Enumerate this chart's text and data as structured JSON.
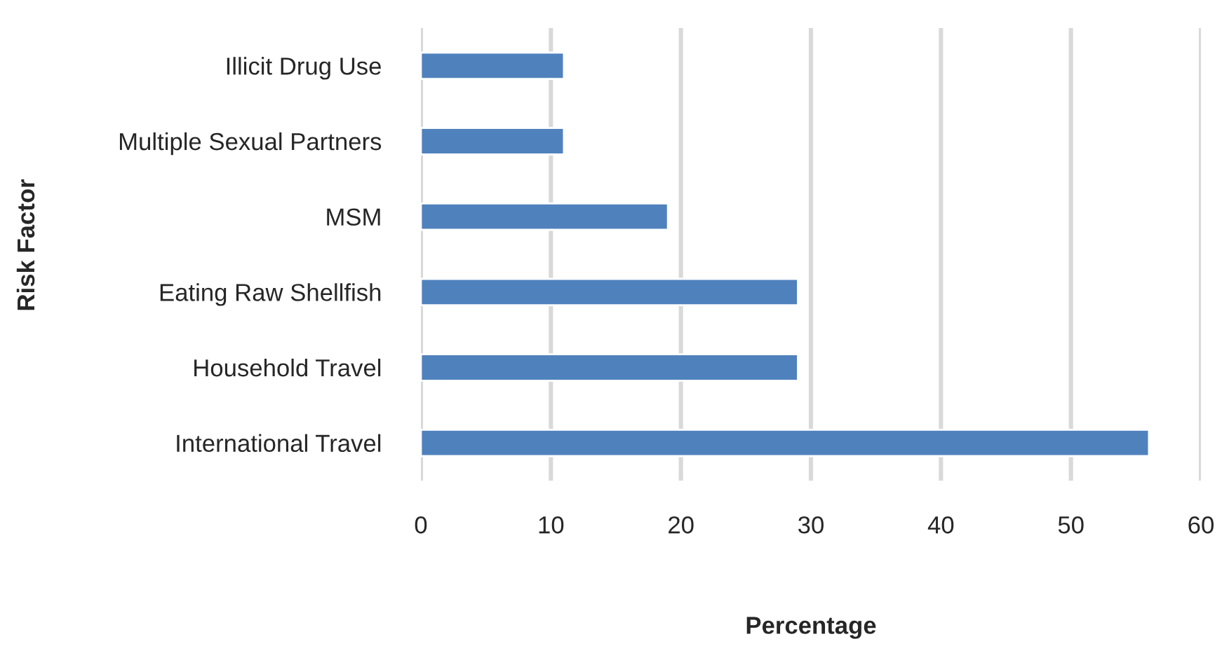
{
  "chart_data": {
    "type": "bar",
    "orientation": "horizontal",
    "xlabel": "Percentage",
    "ylabel": "Risk Factor",
    "categories": [
      "Illicit Drug Use",
      "Multiple Sexual Partners",
      "MSM",
      "Eating Raw Shellfish",
      "Household Travel",
      "International Travel"
    ],
    "values": [
      11,
      11,
      19,
      29,
      29,
      56
    ],
    "color": "#4f81bd",
    "xlim": [
      0,
      60
    ],
    "xticks": [
      0,
      10,
      20,
      30,
      40,
      50,
      60
    ],
    "grid": "x"
  }
}
